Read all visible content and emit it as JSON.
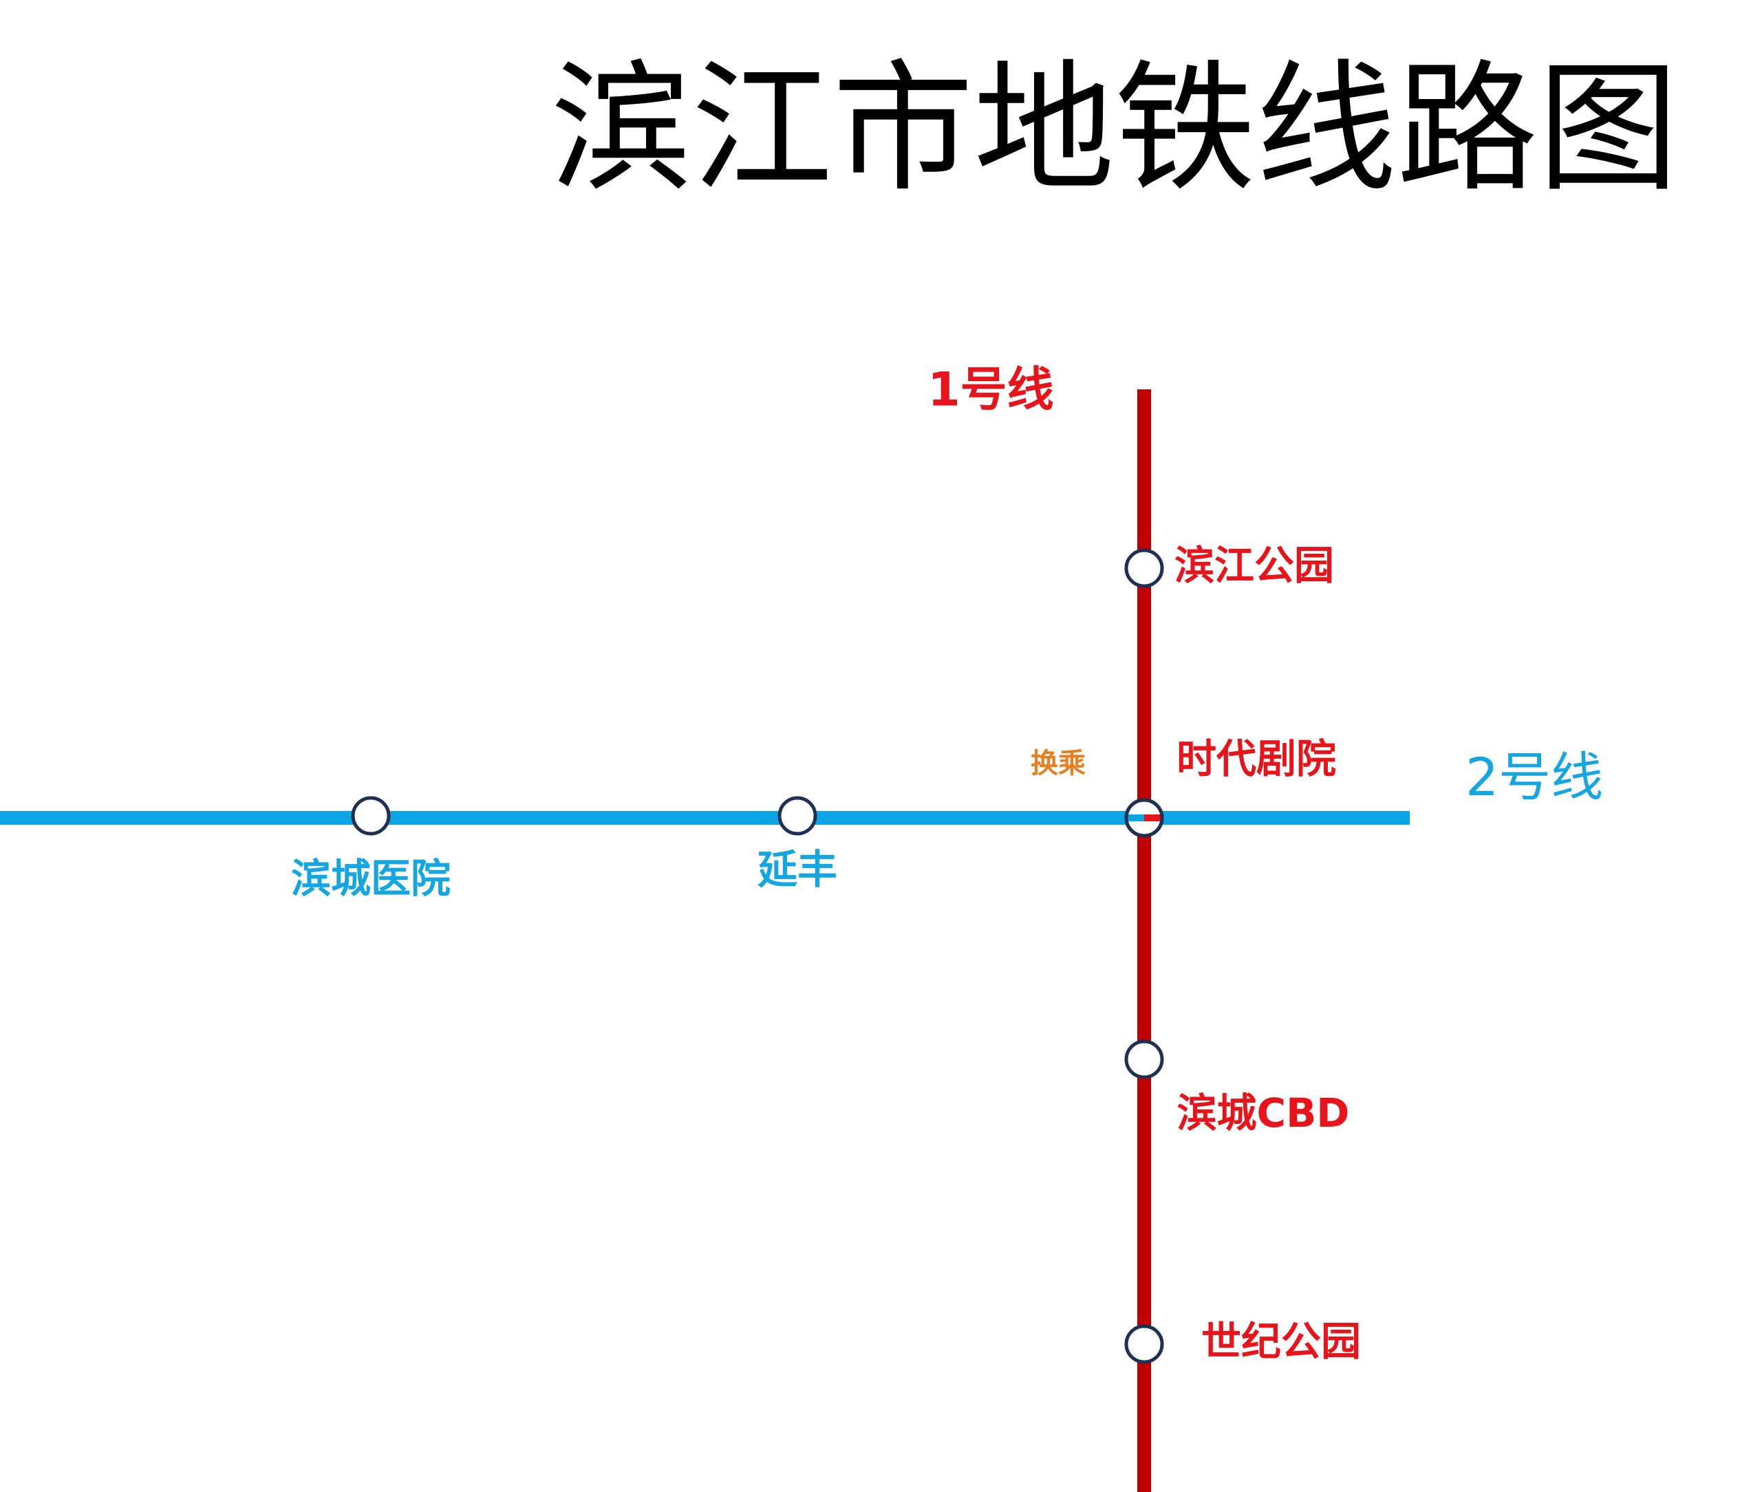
{
  "header": {
    "title": "滨江市地铁线路图"
  },
  "lines": [
    {
      "name": "1号线",
      "stations": [
        "滨江公园",
        "时代剧院",
        "滨城CBD",
        "世纪公园"
      ]
    },
    {
      "name": "2号线",
      "stations": [
        "滨城医院",
        "延丰"
      ]
    }
  ],
  "transfer_label": "换乘"
}
